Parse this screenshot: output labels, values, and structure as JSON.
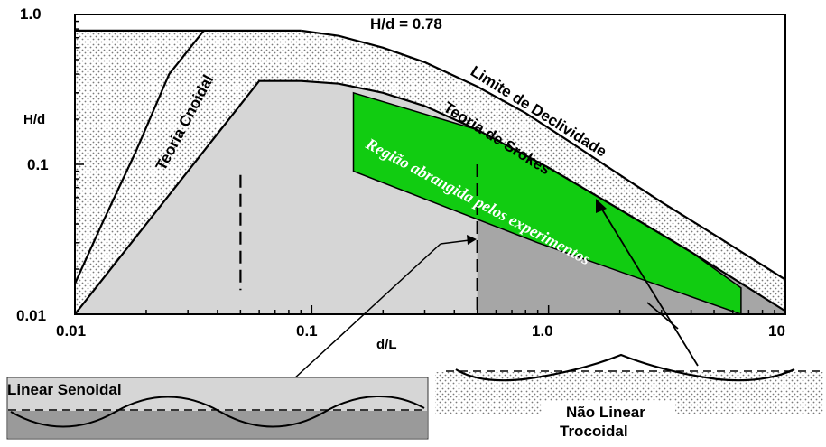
{
  "colors": {
    "light_region": "#d6d6d6",
    "dark_region": "#a6a6a6",
    "green_region": "#11cc11",
    "mid_band": "#b0b0b0",
    "stipple": "#7a7a7a"
  },
  "chart_data": {
    "type": "area",
    "xscale": "log",
    "yscale": "log",
    "xlim": [
      0.01,
      10
    ],
    "ylim": [
      0.01,
      1.0
    ],
    "xlabel": "d/L",
    "ylabel": "H/d",
    "x_ticks": [
      "0.01",
      "0.1",
      "1.0",
      "10"
    ],
    "y_ticks": [
      "0.01",
      "0.1",
      "1.0"
    ],
    "annotations": {
      "breaking_limit": "H/d = 0.78",
      "steepness_limit": "Limite de Declividade",
      "stokes": "Teoria de Srokes",
      "cnoidal": "Teoria Cnoidal",
      "experiments": "Região abrangida pelos experimentos"
    },
    "curves": [
      {
        "name": "H/d = 0.78",
        "x": [
          0.01,
          0.09
        ],
        "y": [
          0.78,
          0.78
        ]
      },
      {
        "name": "Limite de Declividade",
        "x": [
          0.09,
          0.13,
          0.2,
          0.3,
          0.5,
          0.8,
          1.2,
          2.0,
          3.0,
          5.0,
          10.0
        ],
        "y": [
          0.78,
          0.72,
          0.6,
          0.48,
          0.33,
          0.22,
          0.145,
          0.085,
          0.056,
          0.034,
          0.017
        ]
      },
      {
        "name": "Teoria Cnoidal",
        "x": [
          0.01,
          0.06,
          0.09,
          0.13,
          0.2,
          0.3,
          0.5,
          1.0,
          2.0,
          4.0,
          10.0
        ],
        "y": [
          0.01,
          0.36,
          0.36,
          0.345,
          0.3,
          0.245,
          0.17,
          0.095,
          0.05,
          0.026,
          0.0105
        ]
      },
      {
        "name": "",
        "x": [
          0.01,
          0.013,
          0.018,
          0.025,
          0.035
        ],
        "y": [
          0.016,
          0.04,
          0.12,
          0.4,
          0.78
        ]
      },
      {
        "name": "",
        "x": [
          0.05,
          0.05
        ],
        "y": [
          0.085,
          0.0145
        ]
      },
      {
        "name": "",
        "x": [
          0.5,
          0.5
        ],
        "y": [
          0.1,
          0.01
        ]
      }
    ],
    "regions": [
      {
        "name": "Região abrangida pelos experimentos",
        "x": [
          0.15,
          0.15,
          0.9,
          6.5
        ],
        "y": [
          0.3,
          0.09,
          0.03,
          0.01
        ]
      }
    ],
    "insets": [
      {
        "label": "Linear Senoidal",
        "color": "#d6d6d6"
      },
      {
        "label_line1": "Não Linear",
        "label_line2": "Trocoidal"
      }
    ]
  }
}
